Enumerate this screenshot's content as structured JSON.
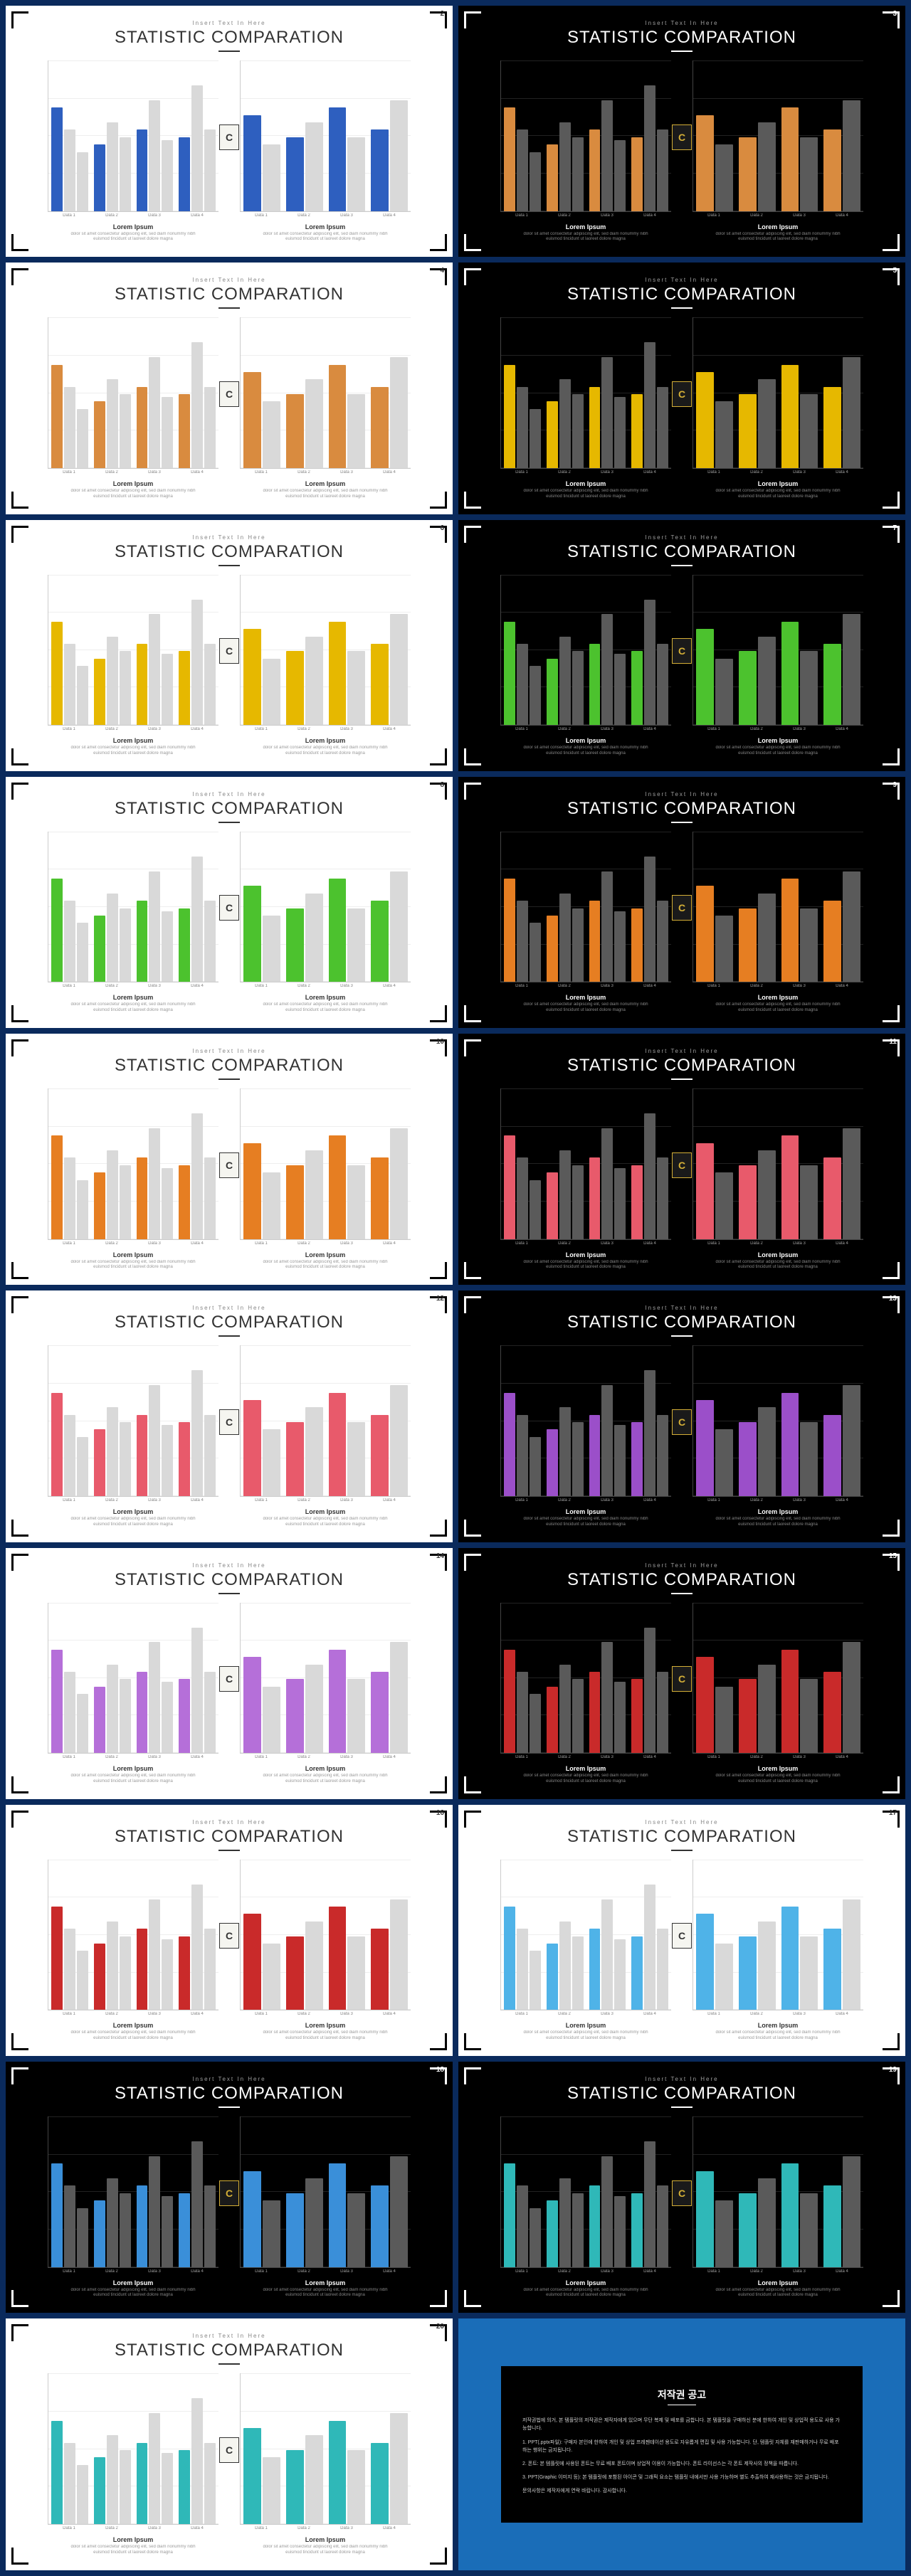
{
  "subtitle": "Insert Text In Here",
  "title": "STATISTIC COMPARATION",
  "caption_title": "Lorem Ipsum",
  "caption_text": "dolor sit amet consectetur adipiscing elit, sed diam nonummy nibh euismod tincidunt ut laoreet dolore magna",
  "badge_letter": "C",
  "xlabels": [
    "Data 1",
    "Data 2",
    "Data 3",
    "Data 4"
  ],
  "secondary_light": "#d9d9d9",
  "secondary_dark": "#5a5a5a",
  "chart_left": {
    "values": [
      [
        70,
        55,
        40
      ],
      [
        45,
        60,
        50
      ],
      [
        55,
        75,
        48
      ],
      [
        50,
        85,
        55
      ]
    ]
  },
  "chart_right": {
    "values": [
      [
        65,
        45
      ],
      [
        50,
        60
      ],
      [
        70,
        50
      ],
      [
        55,
        75
      ]
    ]
  },
  "ylim": [
    0,
    100
  ],
  "gridlines": 5,
  "slides": [
    {
      "num": 2,
      "theme": "light",
      "accent": "#2e5fbf"
    },
    {
      "num": 3,
      "theme": "dark",
      "accent": "#d98b3f"
    },
    {
      "num": 4,
      "theme": "light",
      "accent": "#d98b3f"
    },
    {
      "num": 5,
      "theme": "dark",
      "accent": "#e6b800"
    },
    {
      "num": 6,
      "theme": "light",
      "accent": "#e6b800"
    },
    {
      "num": 7,
      "theme": "dark",
      "accent": "#4cc22e"
    },
    {
      "num": 8,
      "theme": "light",
      "accent": "#4cc22e"
    },
    {
      "num": 9,
      "theme": "dark",
      "accent": "#e67e22"
    },
    {
      "num": 10,
      "theme": "light",
      "accent": "#e67e22"
    },
    {
      "num": 11,
      "theme": "dark",
      "accent": "#e85a6b"
    },
    {
      "num": 12,
      "theme": "light",
      "accent": "#e85a6b"
    },
    {
      "num": 13,
      "theme": "dark",
      "accent": "#9b4fc9"
    },
    {
      "num": 14,
      "theme": "light",
      "accent": "#b56fd9"
    },
    {
      "num": 15,
      "theme": "dark",
      "accent": "#c92a2a"
    },
    {
      "num": 16,
      "theme": "light",
      "accent": "#c92a2a"
    },
    {
      "num": 17,
      "theme": "light",
      "accent": "#4fb3e8"
    },
    {
      "num": 18,
      "theme": "dark",
      "accent": "#3a8fd9"
    },
    {
      "num": 19,
      "theme": "dark",
      "accent": "#2fb8b8"
    },
    {
      "num": 20,
      "theme": "light",
      "accent": "#2fb8b8"
    }
  ],
  "copyright": {
    "title": "저작권 공고",
    "paragraphs": [
      "저작권법에 의거, 본 템플릿의 저작권은 제작자에게 있으며 무단 복제 및 배포를 금합니다. 본 템플릿을 구매하신 분에 한하여 개인 및 상업적 용도로 사용 가능합니다.",
      "1. PPT(.pptx파일): 구매자 본인에 한하여 개인 및 상업 프레젠테이션 용도로 자유롭게 편집 및 사용 가능합니다. 단, 템플릿 자체를 재판매하거나 무료 배포하는 행위는 금지됩니다.",
      "2. 폰트: 본 템플릿에 사용된 폰트는 무료 배포 폰트이며 상업적 이용이 가능합니다. 폰트 라이선스는 각 폰트 제작사의 정책을 따릅니다.",
      "3. PPT(Graphic 이미지 등): 본 템플릿에 포함된 아이콘 및 그래픽 요소는 템플릿 내에서만 사용 가능하며 별도 추출하여 재사용하는 것은 금지됩니다.",
      "문의사항은 제작자에게 연락 바랍니다. 감사합니다."
    ]
  }
}
